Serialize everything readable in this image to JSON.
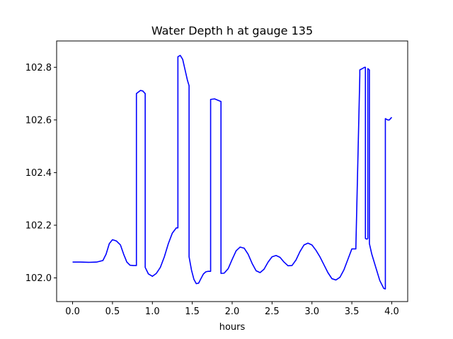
{
  "chart_data": {
    "type": "line",
    "title": "Water Depth h at gauge 135",
    "xlabel": "hours",
    "ylabel": "",
    "xlim": [
      -0.2,
      4.2
    ],
    "ylim": [
      101.91,
      102.9
    ],
    "xticks": [
      0.0,
      0.5,
      1.0,
      1.5,
      2.0,
      2.5,
      3.0,
      3.5,
      4.0
    ],
    "xtick_labels": [
      "0.0",
      "0.5",
      "1.0",
      "1.5",
      "2.0",
      "2.5",
      "3.0",
      "3.5",
      "4.0"
    ],
    "yticks": [
      102.0,
      102.2,
      102.4,
      102.6,
      102.8
    ],
    "ytick_labels": [
      "102.0",
      "102.2",
      "102.4",
      "102.6",
      "102.8"
    ],
    "grid": false,
    "series": [
      {
        "color": "#0000ff",
        "x": [
          0.0,
          0.1,
          0.2,
          0.3,
          0.38,
          0.42,
          0.46,
          0.5,
          0.55,
          0.6,
          0.64,
          0.68,
          0.72,
          0.76,
          0.79,
          0.8,
          0.8,
          0.85,
          0.88,
          0.91,
          0.91,
          0.95,
          1.0,
          1.05,
          1.1,
          1.15,
          1.2,
          1.25,
          1.3,
          1.32,
          1.32,
          1.35,
          1.38,
          1.41,
          1.44,
          1.46,
          1.46,
          1.49,
          1.52,
          1.55,
          1.58,
          1.61,
          1.64,
          1.67,
          1.7,
          1.72,
          1.73,
          1.73,
          1.78,
          1.82,
          1.86,
          1.86,
          1.9,
          1.95,
          2.0,
          2.05,
          2.1,
          2.15,
          2.2,
          2.25,
          2.3,
          2.35,
          2.4,
          2.45,
          2.5,
          2.55,
          2.6,
          2.65,
          2.7,
          2.75,
          2.8,
          2.85,
          2.9,
          2.95,
          3.0,
          3.05,
          3.1,
          3.15,
          3.2,
          3.25,
          3.3,
          3.35,
          3.4,
          3.45,
          3.5,
          3.55,
          3.6,
          3.6,
          3.63,
          3.66,
          3.67,
          3.67,
          3.68,
          3.69,
          3.7,
          3.7,
          3.72,
          3.72,
          3.75,
          3.8,
          3.85,
          3.9,
          3.92,
          3.92,
          3.95,
          3.97,
          4.0
        ],
        "values": [
          102.06,
          102.06,
          102.059,
          102.06,
          102.066,
          102.09,
          102.13,
          102.145,
          102.14,
          102.125,
          102.09,
          102.06,
          102.048,
          102.047,
          102.047,
          102.047,
          102.7,
          102.712,
          102.71,
          102.7,
          102.04,
          102.015,
          102.006,
          102.017,
          102.04,
          102.08,
          102.13,
          102.17,
          102.19,
          102.19,
          102.84,
          102.845,
          102.83,
          102.79,
          102.75,
          102.73,
          102.08,
          102.03,
          101.995,
          101.978,
          101.98,
          101.998,
          102.015,
          102.023,
          102.025,
          102.025,
          102.025,
          102.678,
          102.68,
          102.675,
          102.67,
          102.017,
          102.018,
          102.035,
          102.07,
          102.103,
          102.117,
          102.113,
          102.09,
          102.055,
          102.027,
          102.02,
          102.033,
          102.06,
          102.08,
          102.085,
          102.078,
          102.06,
          102.046,
          102.047,
          102.068,
          102.1,
          102.125,
          102.132,
          102.125,
          102.105,
          102.08,
          102.05,
          102.02,
          101.997,
          101.992,
          102.002,
          102.03,
          102.07,
          102.11,
          102.11,
          102.77,
          102.79,
          102.795,
          102.8,
          102.8,
          102.15,
          102.148,
          102.147,
          102.15,
          102.795,
          102.79,
          102.13,
          102.09,
          102.04,
          101.99,
          101.96,
          101.958,
          102.605,
          102.6,
          102.6,
          102.61
        ]
      }
    ]
  }
}
